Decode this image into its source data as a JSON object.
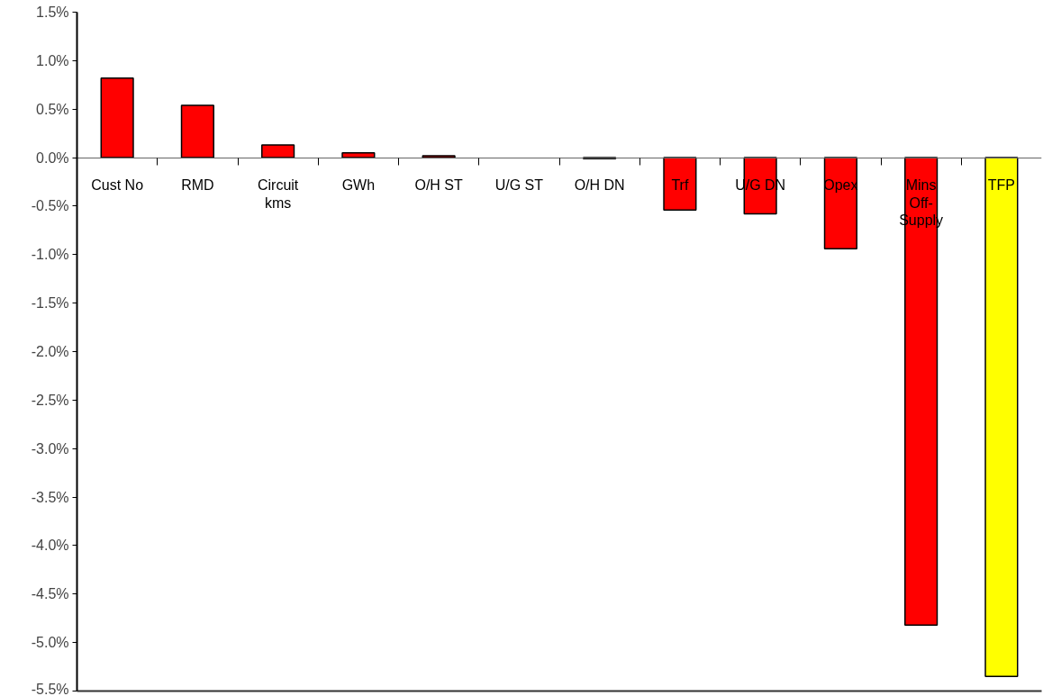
{
  "chart_data": {
    "type": "bar",
    "categories": [
      "Cust No",
      "RMD",
      "Circuit kms",
      "GWh",
      "O/H ST",
      "U/G ST",
      "O/H DN",
      "Trf",
      "U/G DN",
      "Opex",
      "Mins Off-Supply",
      "TFP"
    ],
    "values": [
      0.82,
      0.54,
      0.13,
      0.05,
      0.02,
      null,
      -0.01,
      -0.54,
      -0.58,
      -0.94,
      -4.82,
      -5.35
    ],
    "colors": [
      "#ff0000",
      "#ff0000",
      "#ff0000",
      "#ff0000",
      "#ff0000",
      "#ff0000",
      "#ff0000",
      "#ff0000",
      "#ff0000",
      "#ff0000",
      "#ff0000",
      "#ffff00"
    ],
    "ylim": [
      -5.5,
      1.5
    ],
    "yticks": [
      {
        "value": 1.5,
        "label": "1.5%"
      },
      {
        "value": 1.0,
        "label": "1.0%"
      },
      {
        "value": 0.5,
        "label": "0.5%"
      },
      {
        "value": 0.0,
        "label": "0.0%"
      },
      {
        "value": -0.5,
        "label": "-0.5%"
      },
      {
        "value": -1.0,
        "label": "-1.0%"
      },
      {
        "value": -1.5,
        "label": "-1.5%"
      },
      {
        "value": -2.0,
        "label": "-2.0%"
      },
      {
        "value": -2.5,
        "label": "-2.5%"
      },
      {
        "value": -3.0,
        "label": "-3.0%"
      },
      {
        "value": -3.5,
        "label": "-3.5%"
      },
      {
        "value": -4.0,
        "label": "-4.0%"
      },
      {
        "value": -4.5,
        "label": "-4.5%"
      },
      {
        "value": -5.0,
        "label": "-5.0%"
      },
      {
        "value": -5.5,
        "label": "-5.5%"
      }
    ]
  }
}
